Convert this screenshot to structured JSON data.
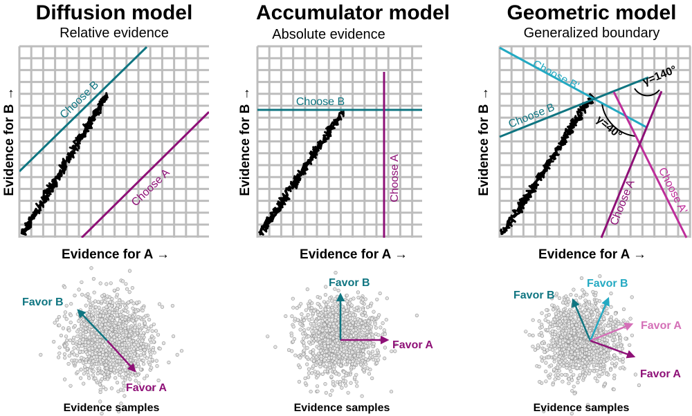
{
  "colors": {
    "teal": "#0f7581",
    "purple": "#8e1077",
    "cyan": "#23a9c2",
    "pink": "#d46fb7",
    "walk": "#000000",
    "grid": "#bdbdbd",
    "dots": "#9e9e9e"
  },
  "panels": [
    {
      "title": "Diffusion model",
      "subtitle": "Relative evidence",
      "ylabel": "Evidence for B →",
      "xlabel": "Evidence for A →",
      "choose_b": "Choose B",
      "choose_a": "Choose A",
      "vectors": [
        {
          "label": "Favor B",
          "color": "#0f7581"
        },
        {
          "label": "Favor A",
          "color": "#8e1077"
        }
      ],
      "samples": "Evidence samples"
    },
    {
      "title": "Accumulator model",
      "subtitle": "Absolute evidence",
      "ylabel": "Evidence for B →",
      "xlabel": "Evidence for A →",
      "choose_b": "Choose B",
      "choose_a": "Choose A",
      "vectors": [
        {
          "label": "Favor B",
          "color": "#0f7581"
        },
        {
          "label": "Favor A",
          "color": "#8e1077"
        }
      ],
      "samples": "Evidence samples"
    },
    {
      "title": "Geometric model",
      "subtitle": "Generalized boundary",
      "ylabel": "Evidence for B →",
      "xlabel": "Evidence for A →",
      "choose_b": "Choose B",
      "choose_b_prime": "Choose B'",
      "choose_a": "Choose A",
      "choose_a_prime": "Choose A'",
      "angle_140": "γ=140°",
      "angle_40": "γ=40°",
      "vectors": [
        {
          "label": "Favor B",
          "color": "#0f7581"
        },
        {
          "label": "Favor B",
          "color": "#23a9c2"
        },
        {
          "label": "Favor A",
          "color": "#d46fb7"
        },
        {
          "label": "Favor A",
          "color": "#8e1077"
        }
      ],
      "samples": "Evidence samples"
    }
  ]
}
